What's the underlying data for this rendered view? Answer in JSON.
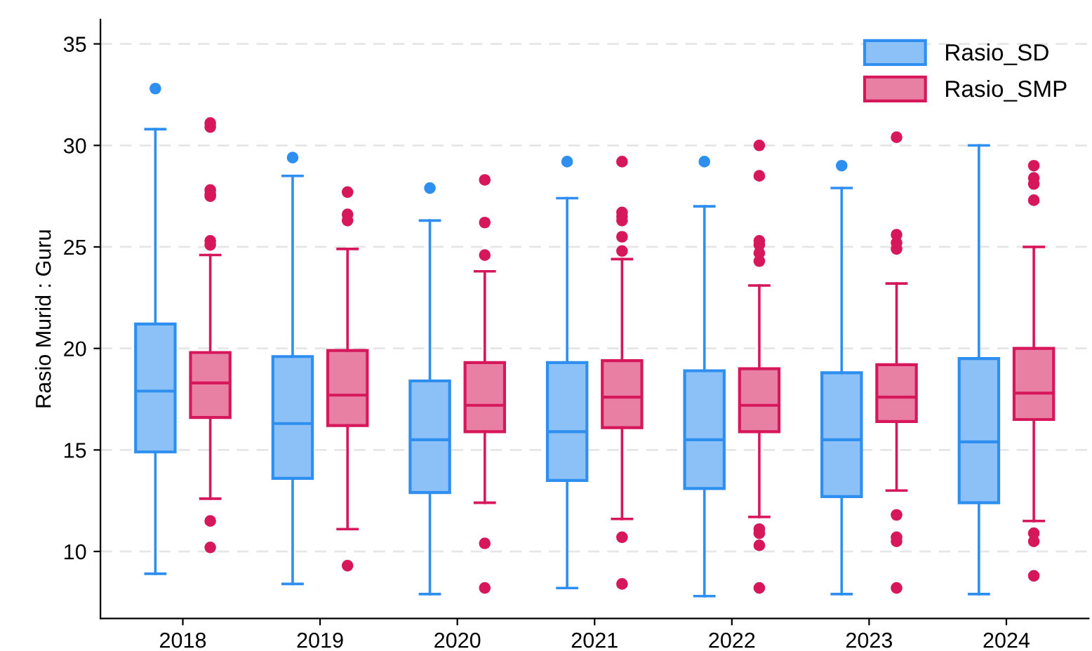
{
  "chart_data": {
    "type": "box",
    "ylabel": "Rasio Murid : Guru",
    "categories": [
      "2018",
      "2019",
      "2020",
      "2021",
      "2022",
      "2023",
      "2024"
    ],
    "ylim": [
      6.7,
      36.2
    ],
    "yticks": [
      10,
      15,
      20,
      25,
      30,
      35
    ],
    "grid": "y",
    "legend": "top right",
    "series": [
      {
        "name": "Rasio_SD",
        "color": "#2e8ff0",
        "boxes": [
          {
            "low": 8.9,
            "q1": 14.9,
            "median": 17.9,
            "q3": 21.2,
            "high": 30.8,
            "outliers": [
              32.8
            ]
          },
          {
            "low": 8.4,
            "q1": 13.6,
            "median": 16.3,
            "q3": 19.6,
            "high": 28.5,
            "outliers": [
              29.4
            ]
          },
          {
            "low": 7.9,
            "q1": 12.9,
            "median": 15.5,
            "q3": 18.4,
            "high": 26.3,
            "outliers": [
              27.9
            ]
          },
          {
            "low": 8.2,
            "q1": 13.5,
            "median": 15.9,
            "q3": 19.3,
            "high": 27.4,
            "outliers": [
              29.2
            ]
          },
          {
            "low": 7.8,
            "q1": 13.1,
            "median": 15.5,
            "q3": 18.9,
            "high": 27.0,
            "outliers": [
              29.2
            ]
          },
          {
            "low": 7.9,
            "q1": 12.7,
            "median": 15.5,
            "q3": 18.8,
            "high": 27.9,
            "outliers": [
              29.0
            ]
          },
          {
            "low": 7.9,
            "q1": 12.4,
            "median": 15.4,
            "q3": 19.5,
            "high": 30.0
          }
        ]
      },
      {
        "name": "Rasio_SMP",
        "color": "#d6185a",
        "boxes": [
          {
            "low": 12.6,
            "q1": 16.6,
            "median": 18.3,
            "q3": 19.8,
            "high": 24.6,
            "outliers": [
              31.1,
              30.9,
              27.8,
              27.6,
              27.5,
              25.3,
              25.1,
              11.5,
              10.2
            ]
          },
          {
            "low": 11.1,
            "q1": 16.2,
            "median": 17.7,
            "q3": 19.9,
            "high": 24.9,
            "outliers": [
              27.7,
              26.6,
              26.3,
              9.3
            ]
          },
          {
            "low": 12.4,
            "q1": 15.9,
            "median": 17.2,
            "q3": 19.3,
            "high": 23.8,
            "outliers": [
              28.3,
              26.2,
              24.6,
              10.4,
              8.2
            ]
          },
          {
            "low": 11.6,
            "q1": 16.1,
            "median": 17.6,
            "q3": 19.4,
            "high": 24.4,
            "outliers": [
              29.2,
              26.7,
              26.5,
              26.3,
              25.5,
              24.8,
              10.7,
              8.4
            ]
          },
          {
            "low": 11.7,
            "q1": 15.9,
            "median": 17.2,
            "q3": 19.0,
            "high": 23.1,
            "outliers": [
              30.0,
              28.5,
              25.3,
              25.1,
              24.7,
              24.3,
              11.1,
              10.9,
              10.3,
              8.2
            ]
          },
          {
            "low": 13.0,
            "q1": 16.4,
            "median": 17.6,
            "q3": 19.2,
            "high": 23.2,
            "outliers": [
              30.4,
              25.6,
              25.2,
              24.9,
              11.8,
              10.7,
              10.5,
              8.2
            ]
          },
          {
            "low": 11.5,
            "q1": 16.5,
            "median": 17.8,
            "q3": 20.0,
            "high": 25.0,
            "outliers": [
              29.0,
              28.4,
              28.1,
              27.3,
              10.9,
              10.5,
              8.8
            ]
          }
        ]
      }
    ]
  }
}
